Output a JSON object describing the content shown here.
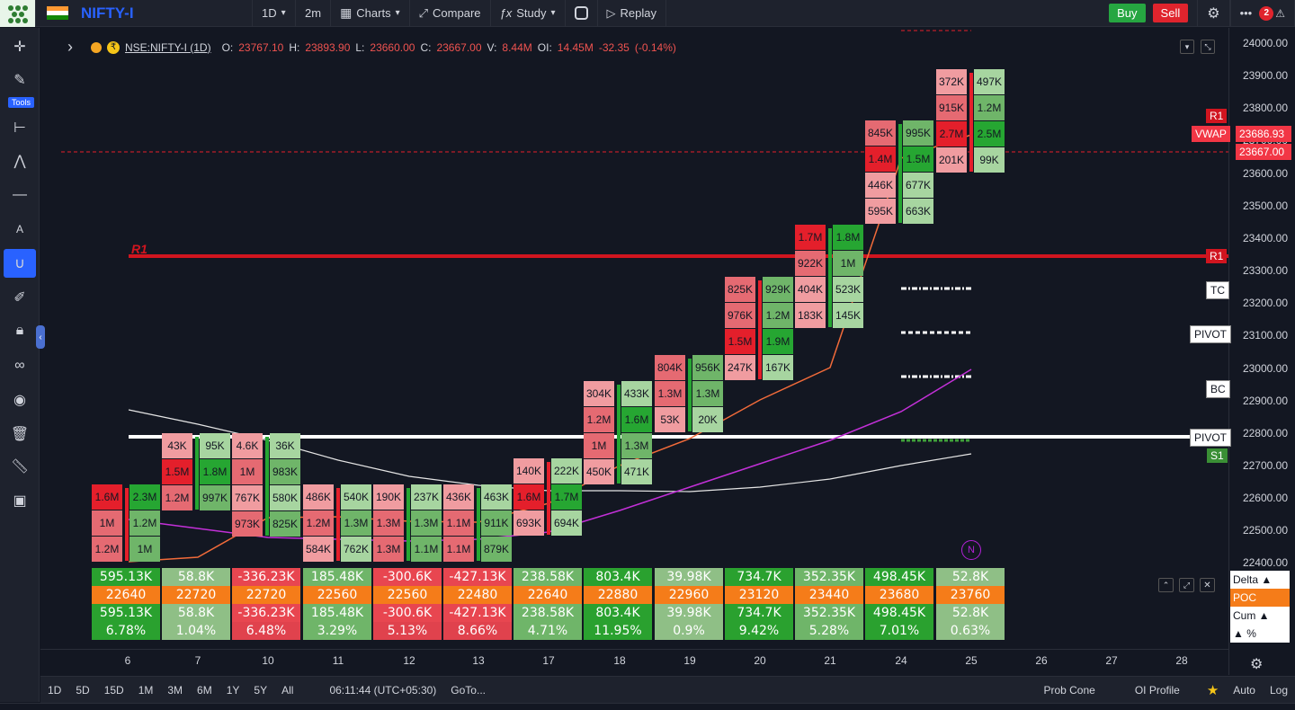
{
  "topbar": {
    "symbol": "NIFTY-I",
    "interval": "1D",
    "sub_interval": "2m",
    "charts_label": "Charts",
    "compare_label": "Compare",
    "study_label": "Study",
    "replay_label": "Replay",
    "buy_label": "Buy",
    "sell_label": "Sell",
    "notif_count": "2"
  },
  "legend": {
    "symbol_line": "NSE:NIFTY-I (1D)",
    "open_label": "O:",
    "open": "23767.10",
    "high_label": "H:",
    "high": "23893.90",
    "low_label": "L:",
    "low": "23660.00",
    "close_label": "C:",
    "close": "23667.00",
    "vol_label": "V:",
    "vol": "8.44M",
    "oi_label": "OI:",
    "oi": "14.45M",
    "change": "-32.35",
    "change_pct": "(-0.14%)"
  },
  "left_toolbar": {
    "tools_label": "Tools"
  },
  "price_axis": {
    "ticks": [
      "24000.00",
      "23900.00",
      "23800.00",
      "23700.00",
      "23600.00",
      "23500.00",
      "23400.00",
      "23300.00",
      "23200.00",
      "23100.00",
      "23000.00",
      "22900.00",
      "22800.00",
      "22700.00",
      "22600.00",
      "22500.00",
      "22400.00"
    ],
    "vwap_label": "VWAP",
    "vwap_value": "23686.93",
    "last_price": "23667.00",
    "r1": "R1",
    "r1_top": "R1"
  },
  "levels": {
    "r1_chart_label": "R1",
    "tc": "TC",
    "pivot": "PIVOT",
    "bc": "BC",
    "pivot2": "PIVOT",
    "s1": "S1",
    "n_marker": "N"
  },
  "time_axis": {
    "ticks": [
      "6",
      "7",
      "10",
      "11",
      "12",
      "13",
      "17",
      "18",
      "19",
      "20",
      "21",
      "24",
      "25",
      "26",
      "27",
      "28"
    ]
  },
  "bottom_bar": {
    "ranges": [
      "1D",
      "5D",
      "15D",
      "1M",
      "3M",
      "6M",
      "1Y",
      "5Y",
      "All"
    ],
    "clock": "06:11:44 (UTC+05:30)",
    "goto": "GoTo...",
    "prob_cone": "Prob Cone",
    "oi_profile": "OI Profile",
    "auto": "Auto",
    "log": "Log"
  },
  "table": {
    "row_labels": [
      "Delta ▲",
      "POC",
      "Cum ▲",
      "▲ %"
    ],
    "delta": [
      "595.13K",
      "58.8K",
      "-336.23K",
      "185.48K",
      "-300.6K",
      "-427.13K",
      "238.58K",
      "803.4K",
      "39.98K",
      "734.7K",
      "352.35K",
      "498.45K",
      "52.8K"
    ],
    "poc": [
      "22640",
      "22720",
      "22720",
      "22560",
      "22560",
      "22480",
      "22640",
      "22880",
      "22960",
      "23120",
      "23440",
      "23680",
      "23760"
    ],
    "cum": [
      "595.13K",
      "58.8K",
      "-336.23K",
      "185.48K",
      "-300.6K",
      "-427.13K",
      "238.58K",
      "803.4K",
      "39.98K",
      "734.7K",
      "352.35K",
      "498.45K",
      "52.8K"
    ],
    "pct": [
      "6.78%",
      "1.04%",
      "6.48%",
      "3.29%",
      "5.13%",
      "8.66%",
      "4.71%",
      "11.95%",
      "0.9%",
      "9.42%",
      "5.28%",
      "7.01%",
      "0.63%"
    ]
  },
  "footprint": [
    {
      "day": "6",
      "sell": [
        "1.6M",
        "1M",
        "1.2M"
      ],
      "buy": [
        "2.3M",
        "1.2M",
        "1M"
      ]
    },
    {
      "day": "7",
      "sell": [
        "43K",
        "1.5M",
        "1.2M"
      ],
      "buy": [
        "95K",
        "1.8M",
        "997K"
      ]
    },
    {
      "day": "10",
      "sell": [
        "4.6K",
        "1M",
        "767K",
        "973K"
      ],
      "buy": [
        "36K",
        "983K",
        "580K",
        "825K"
      ]
    },
    {
      "day": "11",
      "sell": [
        "486K",
        "1.2M",
        "584K"
      ],
      "buy": [
        "540K",
        "1.3M",
        "762K"
      ]
    },
    {
      "day": "12",
      "sell": [
        "190K",
        "1.3M",
        "1.3M"
      ],
      "buy": [
        "237K",
        "1.3M",
        "1.1M"
      ]
    },
    {
      "day": "13",
      "sell": [
        "436K",
        "1.1M",
        "1.1M"
      ],
      "buy": [
        "463K",
        "911K",
        "879K"
      ]
    },
    {
      "day": "17",
      "sell": [
        "140K",
        "1.6M",
        "693K"
      ],
      "buy": [
        "222K",
        "1.7M",
        "694K"
      ]
    },
    {
      "day": "18",
      "sell": [
        "304K",
        "1.2M",
        "1M",
        "450K"
      ],
      "buy": [
        "433K",
        "1.6M",
        "1.3M",
        "471K"
      ]
    },
    {
      "day": "19",
      "sell": [
        "804K",
        "1.3M",
        "53K"
      ],
      "buy": [
        "956K",
        "1.3M",
        "20K"
      ]
    },
    {
      "day": "20",
      "sell": [
        "825K",
        "976K",
        "1.5M",
        "247K"
      ],
      "buy": [
        "929K",
        "1.2M",
        "1.9M",
        "167K"
      ]
    },
    {
      "day": "21",
      "sell": [
        "1.7M",
        "922K",
        "404K",
        "183K"
      ],
      "buy": [
        "1.8M",
        "1M",
        "523K",
        "145K"
      ]
    },
    {
      "day": "24",
      "sell": [
        "845K",
        "1.4M",
        "446K",
        "595K"
      ],
      "buy": [
        "995K",
        "1.5M",
        "677K",
        "663K"
      ]
    },
    {
      "day": "25",
      "sell": [
        "372K",
        "915K",
        "2.7M",
        "201K"
      ],
      "buy": [
        "497K",
        "1.2M",
        "2.5M",
        "99K"
      ]
    }
  ],
  "colors": {
    "bull": "#26a632",
    "bear": "#e41f2b",
    "poc_bg": "#f57c19",
    "vwap": "#f23645",
    "accent": "#2962ff"
  }
}
